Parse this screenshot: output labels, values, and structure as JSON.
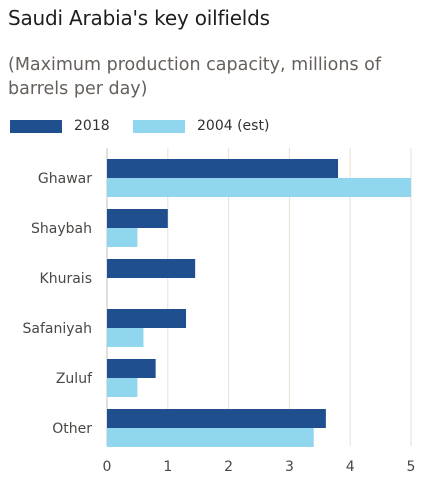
{
  "title": "Saudi Arabia's key oilfields",
  "subtitle": "(Maximum production capacity, millions of barrels per day)",
  "legend": [
    {
      "label": "2018",
      "color": "#1f4f8f"
    },
    {
      "label": "2004 (est)",
      "color": "#8fd6ee"
    }
  ],
  "chart_data": {
    "type": "bar",
    "orientation": "horizontal",
    "categories": [
      "Ghawar",
      "Shaybah",
      "Khurais",
      "Safaniyah",
      "Zuluf",
      "Other"
    ],
    "series": [
      {
        "name": "2018",
        "color": "#1f4f8f",
        "values": [
          3.8,
          1.0,
          1.45,
          1.3,
          0.8,
          3.6
        ]
      },
      {
        "name": "2004 (est)",
        "color": "#8fd6ee",
        "values": [
          5.0,
          0.5,
          null,
          0.6,
          0.5,
          3.4
        ]
      }
    ],
    "xlim": [
      0,
      5
    ],
    "xticks": [
      0,
      1,
      2,
      3,
      4,
      5
    ],
    "grid": true,
    "legend_position": "top-left",
    "gridline_color": "#e9ded4"
  }
}
